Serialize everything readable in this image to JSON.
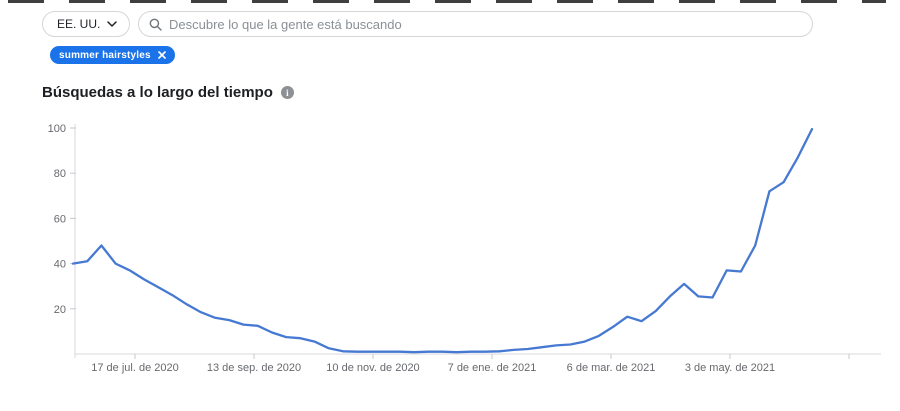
{
  "topbar": {
    "region_selector": {
      "label": "EE. UU."
    },
    "search": {
      "placeholder": "Descubre lo que la gente está buscando"
    },
    "tag": {
      "label": "summer hairstyles",
      "color": "#1a73e8"
    }
  },
  "section": {
    "title": "Búsquedas a lo largo del tiempo"
  },
  "chart_data": {
    "type": "line",
    "title": "Búsquedas a lo largo del tiempo",
    "series_name": "summer hairstyles",
    "xlabel": "",
    "ylabel": "",
    "grid": false,
    "legend": "none",
    "line_color": "#4679d2",
    "axis_color": "#d8dadd",
    "ylim": [
      0,
      100
    ],
    "y_ticks": [
      20,
      40,
      60,
      80,
      100
    ],
    "x_tick_labels": [
      "17 de jul. de 2020",
      "13 de sep. de 2020",
      "10 de nov. de 2020",
      "7 de ene. de 2021",
      "6 de mar. de 2021",
      "3 de may. de 2021"
    ],
    "x_unit": "weekly points, jun 2020 - jun 2021",
    "values": [
      40,
      41,
      48,
      40,
      37,
      33,
      29.5,
      26,
      22,
      18.5,
      16,
      15,
      13,
      12.5,
      9.5,
      7.5,
      7,
      5.5,
      2.5,
      1.2,
      1,
      1,
      1,
      1,
      0.8,
      1,
      1,
      0.8,
      1,
      1,
      1.2,
      1.8,
      2.2,
      3,
      3.8,
      4.2,
      5.5,
      8,
      12,
      16.5,
      14.5,
      19,
      25.5,
      31,
      25.5,
      25,
      37,
      36.5,
      48,
      72,
      76,
      87,
      99.5
    ]
  }
}
